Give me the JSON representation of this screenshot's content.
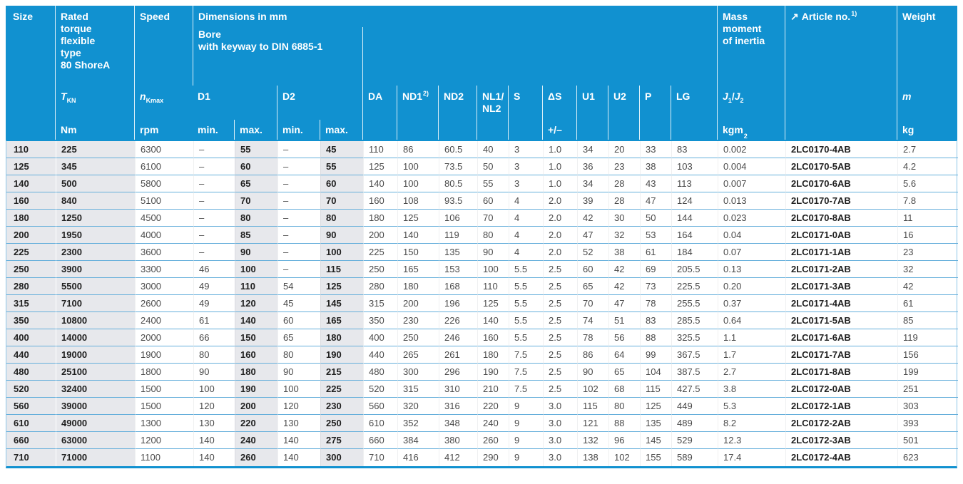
{
  "colors": {
    "header_bg": "#1191d0",
    "row_separator": "#66afdb",
    "shaded_column_bg": "#e7e8ec",
    "table_border": "#1191d0",
    "header_text": "#ffffff",
    "data_text": "#4a4a4a",
    "data_text_bold": "#202020"
  },
  "table": {
    "header": {
      "size": "Size",
      "torque_title": "Rated\ntorque\nflexible\ntype\n80 ShoreA",
      "torque_sym_main": "T",
      "torque_sym_sub": "KN",
      "torque_unit": "Nm",
      "speed_title": "Speed",
      "speed_sym_main": "n",
      "speed_sym_sub": "Kmax",
      "speed_unit": "rpm",
      "dims_title": "Dimensions in mm",
      "bore_title": "Bore\nwith keyway to DIN 6885-1",
      "d1": "D1",
      "d2": "D2",
      "min": "min.",
      "max": "max.",
      "da": "DA",
      "nd1": "ND1",
      "nd1_sup": "2)",
      "nd2": "ND2",
      "nl": "NL1/\nNL2",
      "s": "S",
      "delta_s": "ΔS",
      "delta_s_unit": "+/–",
      "u1": "U1",
      "u2": "U2",
      "p": "P",
      "lg": "LG",
      "mass_title": "Mass\nmoment\nof inertia",
      "mass_sym_main1": "J",
      "mass_sym_sub1": "1",
      "mass_sym_slash": "/",
      "mass_sym_main2": "J",
      "mass_sym_sub2": "2",
      "mass_unit_main": "kgm",
      "mass_unit_sup": "2",
      "article_arrow": "↗",
      "article_title": "Article no.",
      "article_sup": "1)",
      "weight_title": "Weight",
      "weight_sym": "m",
      "weight_unit": "kg"
    },
    "column_keys": [
      "size",
      "torque",
      "speed",
      "d1_min",
      "d1_max",
      "d2_min",
      "d2_max",
      "da",
      "nd1",
      "nd2",
      "nl1_nl2",
      "s",
      "delta_s",
      "u1",
      "u2",
      "p",
      "lg",
      "inertia",
      "article_no",
      "weight"
    ],
    "rows": [
      [
        "110",
        "225",
        "6300",
        "–",
        "55",
        "–",
        "45",
        "110",
        "86",
        "60.5",
        "40",
        "3",
        "1.0",
        "34",
        "20",
        "33",
        "83",
        "0.002",
        "2LC0170-4AB",
        "2.7"
      ],
      [
        "125",
        "345",
        "6100",
        "–",
        "60",
        "–",
        "55",
        "125",
        "100",
        "73.5",
        "50",
        "3",
        "1.0",
        "36",
        "23",
        "38",
        "103",
        "0.004",
        "2LC0170-5AB",
        "4.2"
      ],
      [
        "140",
        "500",
        "5800",
        "–",
        "65",
        "–",
        "60",
        "140",
        "100",
        "80.5",
        "55",
        "3",
        "1.0",
        "34",
        "28",
        "43",
        "113",
        "0.007",
        "2LC0170-6AB",
        "5.6"
      ],
      [
        "160",
        "840",
        "5100",
        "–",
        "70",
        "–",
        "70",
        "160",
        "108",
        "93.5",
        "60",
        "4",
        "2.0",
        "39",
        "28",
        "47",
        "124",
        "0.013",
        "2LC0170-7AB",
        "7.8"
      ],
      [
        "180",
        "1250",
        "4500",
        "–",
        "80",
        "–",
        "80",
        "180",
        "125",
        "106",
        "70",
        "4",
        "2.0",
        "42",
        "30",
        "50",
        "144",
        "0.023",
        "2LC0170-8AB",
        "11"
      ],
      [
        "200",
        "1950",
        "4000",
        "–",
        "85",
        "–",
        "90",
        "200",
        "140",
        "119",
        "80",
        "4",
        "2.0",
        "47",
        "32",
        "53",
        "164",
        "0.04",
        "2LC0171-0AB",
        "16"
      ],
      [
        "225",
        "2300",
        "3600",
        "–",
        "90",
        "–",
        "100",
        "225",
        "150",
        "135",
        "90",
        "4",
        "2.0",
        "52",
        "38",
        "61",
        "184",
        "0.07",
        "2LC0171-1AB",
        "23"
      ],
      [
        "250",
        "3900",
        "3300",
        "46",
        "100",
        "–",
        "115",
        "250",
        "165",
        "153",
        "100",
        "5.5",
        "2.5",
        "60",
        "42",
        "69",
        "205.5",
        "0.13",
        "2LC0171-2AB",
        "32"
      ],
      [
        "280",
        "5500",
        "3000",
        "49",
        "110",
        "54",
        "125",
        "280",
        "180",
        "168",
        "110",
        "5.5",
        "2.5",
        "65",
        "42",
        "73",
        "225.5",
        "0.20",
        "2LC0171-3AB",
        "42"
      ],
      [
        "315",
        "7100",
        "2600",
        "49",
        "120",
        "45",
        "145",
        "315",
        "200",
        "196",
        "125",
        "5.5",
        "2.5",
        "70",
        "47",
        "78",
        "255.5",
        "0.37",
        "2LC0171-4AB",
        "61"
      ],
      [
        "350",
        "10800",
        "2400",
        "61",
        "140",
        "60",
        "165",
        "350",
        "230",
        "226",
        "140",
        "5.5",
        "2.5",
        "74",
        "51",
        "83",
        "285.5",
        "0.64",
        "2LC0171-5AB",
        "85"
      ],
      [
        "400",
        "14000",
        "2000",
        "66",
        "150",
        "65",
        "180",
        "400",
        "250",
        "246",
        "160",
        "5.5",
        "2.5",
        "78",
        "56",
        "88",
        "325.5",
        "1.1",
        "2LC0171-6AB",
        "119"
      ],
      [
        "440",
        "19000",
        "1900",
        "80",
        "160",
        "80",
        "190",
        "440",
        "265",
        "261",
        "180",
        "7.5",
        "2.5",
        "86",
        "64",
        "99",
        "367.5",
        "1.7",
        "2LC0171-7AB",
        "156"
      ],
      [
        "480",
        "25100",
        "1800",
        "90",
        "180",
        "90",
        "215",
        "480",
        "300",
        "296",
        "190",
        "7.5",
        "2.5",
        "90",
        "65",
        "104",
        "387.5",
        "2.7",
        "2LC0171-8AB",
        "199"
      ],
      [
        "520",
        "32400",
        "1500",
        "100",
        "190",
        "100",
        "225",
        "520",
        "315",
        "310",
        "210",
        "7.5",
        "2.5",
        "102",
        "68",
        "115",
        "427.5",
        "3.8",
        "2LC0172-0AB",
        "251"
      ],
      [
        "560",
        "39000",
        "1500",
        "120",
        "200",
        "120",
        "230",
        "560",
        "320",
        "316",
        "220",
        "9",
        "3.0",
        "115",
        "80",
        "125",
        "449",
        "5.3",
        "2LC0172-1AB",
        "303"
      ],
      [
        "610",
        "49000",
        "1300",
        "130",
        "220",
        "130",
        "250",
        "610",
        "352",
        "348",
        "240",
        "9",
        "3.0",
        "121",
        "88",
        "135",
        "489",
        "8.2",
        "2LC0172-2AB",
        "393"
      ],
      [
        "660",
        "63000",
        "1200",
        "140",
        "240",
        "140",
        "275",
        "660",
        "384",
        "380",
        "260",
        "9",
        "3.0",
        "132",
        "96",
        "145",
        "529",
        "12.3",
        "2LC0172-3AB",
        "501"
      ],
      [
        "710",
        "71000",
        "1100",
        "140",
        "260",
        "140",
        "300",
        "710",
        "416",
        "412",
        "290",
        "9",
        "3.0",
        "138",
        "102",
        "155",
        "589",
        "17.4",
        "2LC0172-4AB",
        "623"
      ]
    ]
  }
}
